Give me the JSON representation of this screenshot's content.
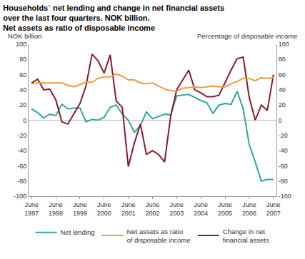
{
  "chart_data": {
    "type": "line",
    "title": "Households` net lending and change in net financial assets over the last four quarters. NOK billion. Net assets as ratio of disposable income",
    "y_label": "NOK billion",
    "y2_label": "Percentage of disposable income",
    "categories": [
      "June\n1997",
      null,
      null,
      null,
      "June\n1998",
      null,
      null,
      null,
      "June\n1999",
      null,
      null,
      null,
      "June\n2000",
      null,
      null,
      null,
      "June\n2001",
      null,
      null,
      null,
      "June\n2002",
      null,
      null,
      null,
      "June\n2003",
      null,
      null,
      null,
      "June\n2004",
      null,
      null,
      null,
      "June\n2005",
      null,
      null,
      null,
      "June\n2006",
      null,
      null,
      null,
      "June\n2007"
    ],
    "series": [
      {
        "name": "Net lending",
        "color": "#2aa9a0",
        "values": [
          15,
          10,
          3,
          8,
          6,
          21,
          15,
          16,
          16,
          -2,
          1,
          0,
          4,
          17,
          20,
          8,
          0,
          -16,
          -7,
          11,
          2,
          5,
          8,
          7,
          32,
          33,
          34,
          30,
          26,
          23,
          9,
          20,
          22,
          21,
          38,
          15,
          -32,
          -55,
          -80,
          -78,
          -78
        ]
      },
      {
        "name": "Net assets as ratio\nof disposable income",
        "color": "#f39a3a",
        "axis": "y2",
        "values": [
          48,
          49,
          49,
          49,
          49,
          49,
          46,
          44,
          47,
          50,
          50,
          55,
          57,
          57,
          61,
          58,
          53,
          53,
          49,
          48,
          49,
          45,
          41,
          39,
          38,
          42,
          43,
          44,
          43,
          44,
          45,
          44,
          44,
          48,
          51,
          55,
          55,
          52,
          56,
          55,
          56
        ]
      },
      {
        "name": "Change in net\nfinancial assets",
        "color": "#8b1a2a",
        "values": [
          49,
          54,
          40,
          41,
          27,
          -2,
          -5,
          8,
          22,
          45,
          87,
          78,
          62,
          86,
          25,
          17,
          -61,
          -30,
          -5,
          -45,
          -40,
          -45,
          -55,
          5,
          40,
          53,
          66,
          40,
          36,
          31,
          31,
          33,
          50,
          66,
          81,
          83,
          30,
          0,
          20,
          13,
          60
        ]
      }
    ],
    "ylim": [
      -100,
      100
    ],
    "yticks": [
      -100,
      -80,
      -60,
      -40,
      -20,
      0,
      20,
      40,
      60,
      80,
      100
    ],
    "y2lim": [
      -100,
      100
    ],
    "y2ticks": [
      -100,
      -80,
      -60,
      -40,
      -20,
      0,
      20,
      40,
      60,
      80,
      100
    ],
    "grid": false,
    "legend": "bottom"
  }
}
